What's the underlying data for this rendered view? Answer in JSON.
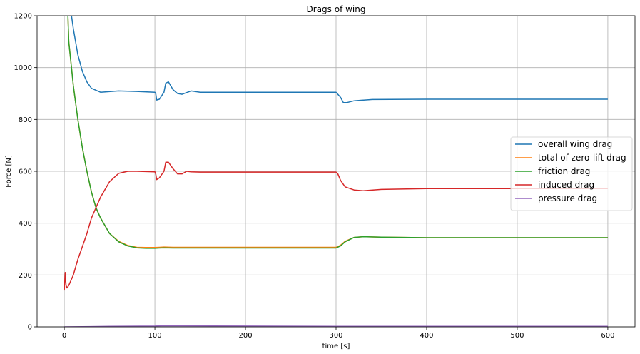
{
  "chart_data": {
    "type": "line",
    "title": "Drags of wing",
    "xlabel": "time [s]",
    "ylabel": "Force [N]",
    "xlim": [
      -30,
      630
    ],
    "ylim": [
      0,
      1200
    ],
    "xticks": [
      0,
      100,
      200,
      300,
      400,
      500,
      600
    ],
    "yticks": [
      0,
      200,
      400,
      600,
      800,
      1000,
      1200
    ],
    "grid": true,
    "legend_position": "center-right",
    "series": [
      {
        "name": "overall wing drag",
        "color": "#1f77b4",
        "points": [
          [
            8,
            1200
          ],
          [
            10,
            1150
          ],
          [
            15,
            1050
          ],
          [
            20,
            985
          ],
          [
            25,
            945
          ],
          [
            30,
            920
          ],
          [
            40,
            905
          ],
          [
            60,
            910
          ],
          [
            80,
            908
          ],
          [
            100,
            905
          ],
          [
            101,
            900
          ],
          [
            102,
            875
          ],
          [
            105,
            878
          ],
          [
            110,
            905
          ],
          [
            112,
            940
          ],
          [
            115,
            945
          ],
          [
            120,
            915
          ],
          [
            125,
            900
          ],
          [
            130,
            897
          ],
          [
            140,
            910
          ],
          [
            150,
            905
          ],
          [
            200,
            905
          ],
          [
            300,
            905
          ],
          [
            305,
            885
          ],
          [
            308,
            865
          ],
          [
            312,
            865
          ],
          [
            320,
            872
          ],
          [
            340,
            877
          ],
          [
            400,
            878
          ],
          [
            600,
            878
          ]
        ]
      },
      {
        "name": "total of zero-lift drag",
        "color": "#ff7f0e",
        "points": [
          [
            4,
            1200
          ],
          [
            5,
            1100
          ],
          [
            8,
            1000
          ],
          [
            10,
            930
          ],
          [
            15,
            800
          ],
          [
            20,
            690
          ],
          [
            25,
            600
          ],
          [
            30,
            520
          ],
          [
            35,
            460
          ],
          [
            40,
            420
          ],
          [
            50,
            360
          ],
          [
            60,
            330
          ],
          [
            70,
            314
          ],
          [
            80,
            307
          ],
          [
            90,
            306
          ],
          [
            100,
            306
          ],
          [
            105,
            307
          ],
          [
            110,
            308
          ],
          [
            120,
            307
          ],
          [
            200,
            307
          ],
          [
            300,
            307
          ],
          [
            305,
            315
          ],
          [
            310,
            330
          ],
          [
            320,
            345
          ],
          [
            330,
            348
          ],
          [
            350,
            346
          ],
          [
            400,
            344
          ],
          [
            600,
            344
          ]
        ]
      },
      {
        "name": "friction drag",
        "color": "#2ca02c",
        "points": [
          [
            4,
            1200
          ],
          [
            5,
            1100
          ],
          [
            8,
            1000
          ],
          [
            10,
            930
          ],
          [
            15,
            800
          ],
          [
            20,
            690
          ],
          [
            25,
            600
          ],
          [
            30,
            520
          ],
          [
            35,
            460
          ],
          [
            40,
            420
          ],
          [
            50,
            360
          ],
          [
            60,
            328
          ],
          [
            70,
            312
          ],
          [
            80,
            305
          ],
          [
            90,
            303
          ],
          [
            100,
            303
          ],
          [
            105,
            304
          ],
          [
            110,
            305
          ],
          [
            120,
            304
          ],
          [
            200,
            304
          ],
          [
            300,
            304
          ],
          [
            305,
            312
          ],
          [
            310,
            328
          ],
          [
            320,
            345
          ],
          [
            330,
            348
          ],
          [
            350,
            346
          ],
          [
            400,
            344
          ],
          [
            600,
            344
          ]
        ]
      },
      {
        "name": "induced drag",
        "color": "#d62728",
        "points": [
          [
            0,
            140
          ],
          [
            1,
            210
          ],
          [
            2,
            160
          ],
          [
            3,
            150
          ],
          [
            5,
            160
          ],
          [
            10,
            200
          ],
          [
            15,
            260
          ],
          [
            20,
            310
          ],
          [
            25,
            360
          ],
          [
            30,
            420
          ],
          [
            40,
            500
          ],
          [
            50,
            560
          ],
          [
            60,
            592
          ],
          [
            70,
            600
          ],
          [
            80,
            600
          ],
          [
            100,
            598
          ],
          [
            101,
            590
          ],
          [
            102,
            568
          ],
          [
            105,
            575
          ],
          [
            110,
            600
          ],
          [
            112,
            635
          ],
          [
            115,
            635
          ],
          [
            120,
            610
          ],
          [
            125,
            590
          ],
          [
            130,
            590
          ],
          [
            135,
            600
          ],
          [
            140,
            598
          ],
          [
            150,
            597
          ],
          [
            200,
            597
          ],
          [
            300,
            597
          ],
          [
            302,
            590
          ],
          [
            305,
            565
          ],
          [
            310,
            540
          ],
          [
            320,
            528
          ],
          [
            330,
            525
          ],
          [
            350,
            530
          ],
          [
            400,
            533
          ],
          [
            600,
            533
          ]
        ]
      },
      {
        "name": "pressure drag",
        "color": "#9467bd",
        "points": [
          [
            0,
            0
          ],
          [
            50,
            2
          ],
          [
            100,
            3
          ],
          [
            110,
            4
          ],
          [
            200,
            3
          ],
          [
            300,
            2
          ],
          [
            400,
            2
          ],
          [
            600,
            2
          ]
        ]
      }
    ]
  }
}
